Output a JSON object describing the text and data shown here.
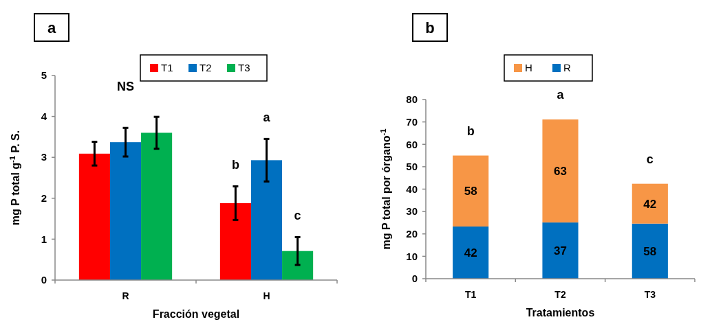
{
  "chart_data": [
    {
      "type": "bar",
      "title": "a",
      "xlabel": "Fracción vegetal",
      "ylabel": "mg  P total  g$^{-1}$ P. S.",
      "categories": [
        "R",
        "H"
      ],
      "ylim": [
        0,
        5
      ],
      "yticks": [
        0,
        1,
        2,
        3,
        4,
        5
      ],
      "grid": false,
      "legend": "top",
      "series": [
        {
          "name": "T1",
          "color": "#ff0000",
          "values": [
            3.09,
            1.88
          ],
          "errors": [
            0.29,
            0.41
          ]
        },
        {
          "name": "T2",
          "color": "#0070c0",
          "values": [
            3.37,
            2.93
          ],
          "errors": [
            0.35,
            0.52
          ]
        },
        {
          "name": "T3",
          "color": "#00b050",
          "values": [
            3.6,
            0.71
          ],
          "errors": [
            0.39,
            0.34
          ]
        }
      ],
      "annotations": [
        "NS",
        "b",
        "a",
        "c"
      ]
    },
    {
      "type": "bar",
      "title": "b",
      "xlabel": "Tratamientos",
      "ylabel": "mg P total por órgano$^{-1}$",
      "categories": [
        "T1",
        "T2",
        "T3"
      ],
      "ylim": [
        0,
        80
      ],
      "yticks": [
        0,
        10,
        20,
        30,
        40,
        50,
        60,
        70,
        80
      ],
      "grid": false,
      "legend": "top",
      "stacked": true,
      "series": [
        {
          "name": "R",
          "color": "#0070c0",
          "values": [
            23.3,
            25.1,
            24.6
          ]
        },
        {
          "name": "H",
          "color": "#f79646",
          "values": [
            31.7,
            46.0,
            17.8
          ]
        }
      ],
      "annotations": [
        "b",
        "a",
        "c",
        "42",
        "37",
        "58",
        "58",
        "63",
        "42"
      ]
    }
  ]
}
